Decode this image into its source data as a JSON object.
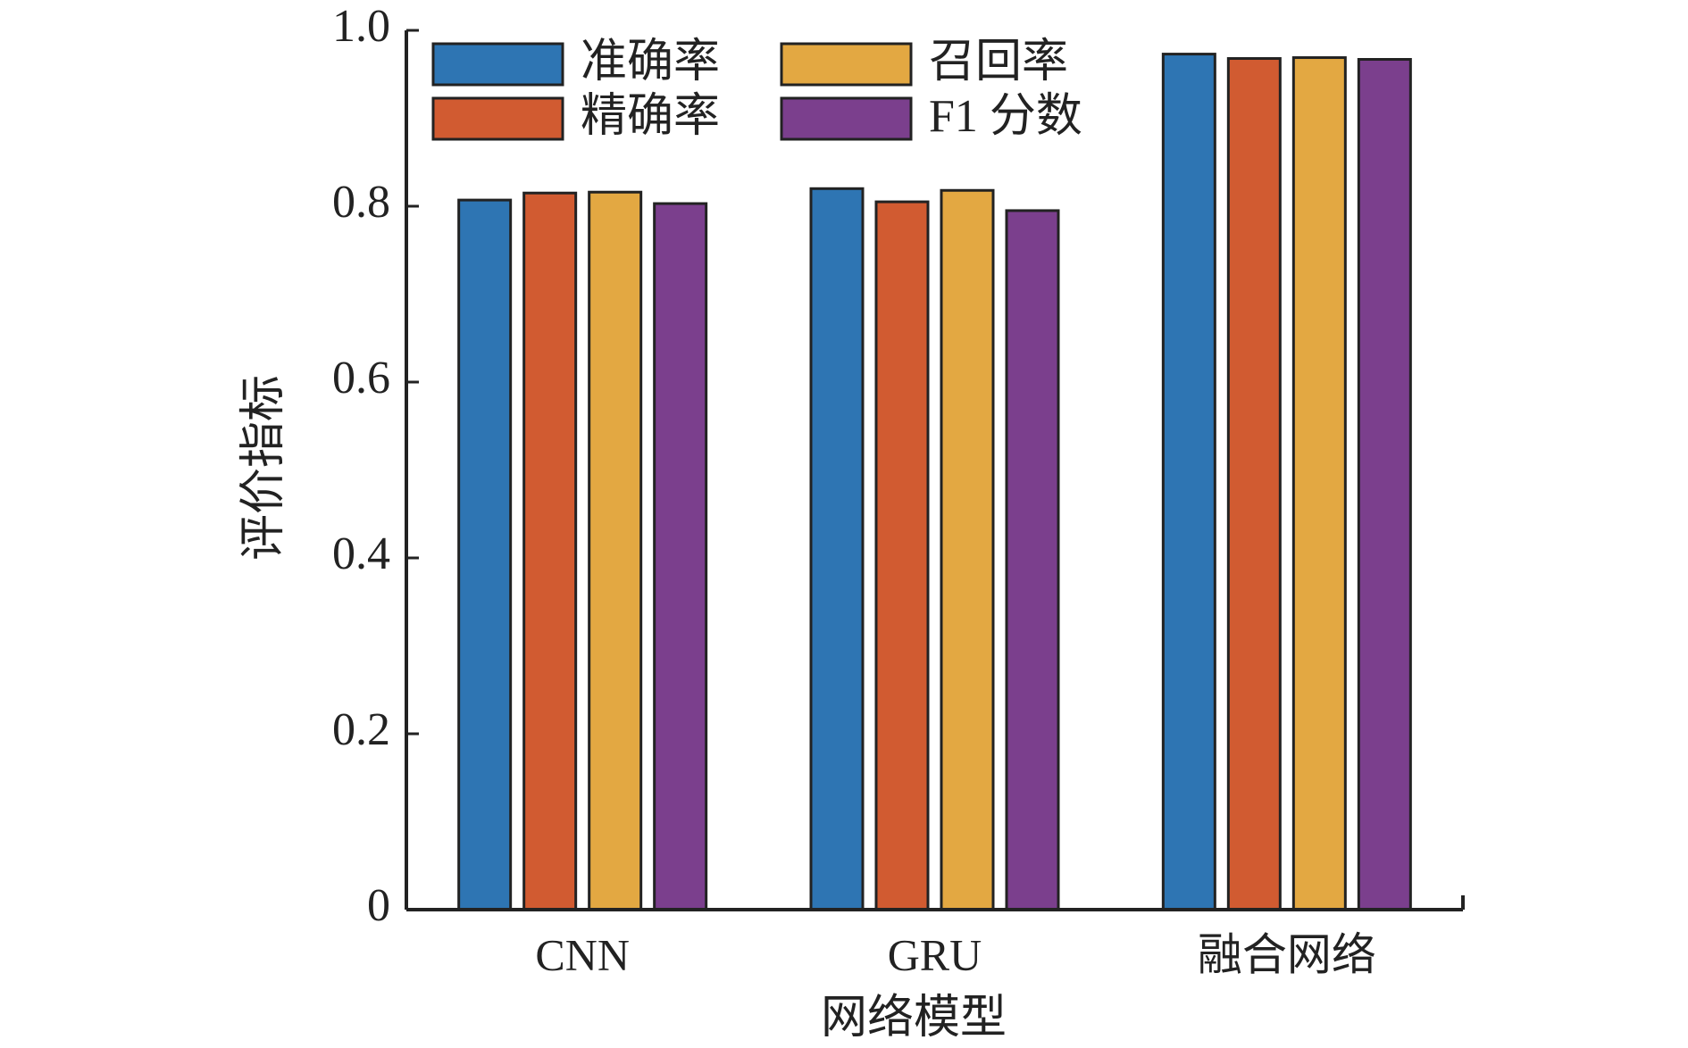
{
  "chart_data": {
    "type": "bar",
    "x_label": "网络模型",
    "y_label": "评价指标",
    "categories": [
      "CNN",
      "GRU",
      "融合网络"
    ],
    "series": [
      {
        "name": "准确率",
        "color": "#2e75b3",
        "values": [
          0.807,
          0.82,
          0.973
        ]
      },
      {
        "name": "精确率",
        "color": "#d15b31",
        "values": [
          0.815,
          0.805,
          0.968
        ]
      },
      {
        "name": "召回率",
        "color": "#e3a842",
        "values": [
          0.816,
          0.818,
          0.969
        ]
      },
      {
        "name": "F1 分数",
        "color": "#7b3f8d",
        "values": [
          0.803,
          0.795,
          0.967
        ]
      }
    ],
    "ylim": [
      0,
      1
    ],
    "yticks": [
      0,
      0.2,
      0.4,
      0.6,
      0.8,
      {
        "value": 1,
        "label": "1.0"
      }
    ],
    "legend": "upper left"
  }
}
